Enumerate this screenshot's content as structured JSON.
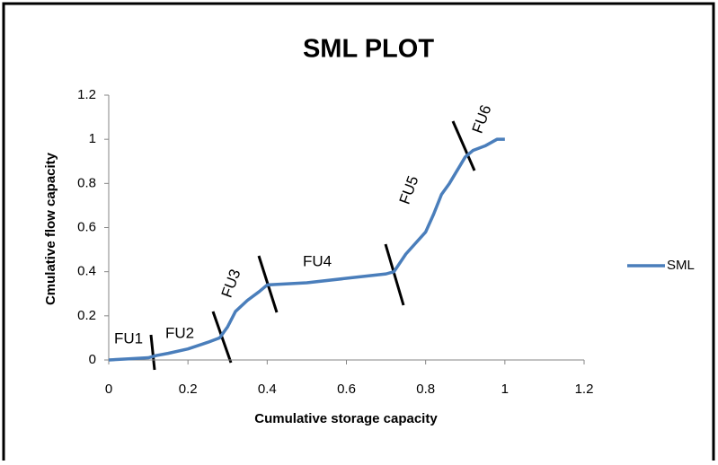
{
  "chart_data": {
    "type": "line",
    "title": "SML PLOT",
    "x_label": "Cumulative storage capacity",
    "y_label": "Cmulative flow capacity",
    "series": [
      {
        "name": "SML",
        "color": "#4a7ebb",
        "x": [
          0,
          0.05,
          0.1,
          0.12,
          0.15,
          0.2,
          0.25,
          0.28,
          0.3,
          0.32,
          0.35,
          0.38,
          0.4,
          0.5,
          0.6,
          0.7,
          0.72,
          0.75,
          0.78,
          0.8,
          0.82,
          0.84,
          0.86,
          0.88,
          0.9,
          0.92,
          0.95,
          0.98,
          1.0
        ],
        "values": [
          0,
          0.005,
          0.01,
          0.02,
          0.03,
          0.05,
          0.08,
          0.1,
          0.15,
          0.22,
          0.27,
          0.31,
          0.34,
          0.35,
          0.37,
          0.39,
          0.4,
          0.48,
          0.54,
          0.58,
          0.66,
          0.75,
          0.8,
          0.86,
          0.92,
          0.95,
          0.97,
          1.0,
          1.0
        ]
      }
    ],
    "annotations": [
      "FU1",
      "FU2",
      "FU3",
      "FU4",
      "FU5",
      "FU6"
    ],
    "xlim": [
      0,
      1.2
    ],
    "xticks": [
      0,
      0.2,
      0.4,
      0.6,
      0.8,
      1,
      1.2
    ],
    "ylim": [
      0,
      1.2
    ],
    "yticks": [
      0,
      0.2,
      0.4,
      0.6,
      0.8,
      1,
      1.2
    ],
    "grid": false,
    "legend": "right"
  }
}
